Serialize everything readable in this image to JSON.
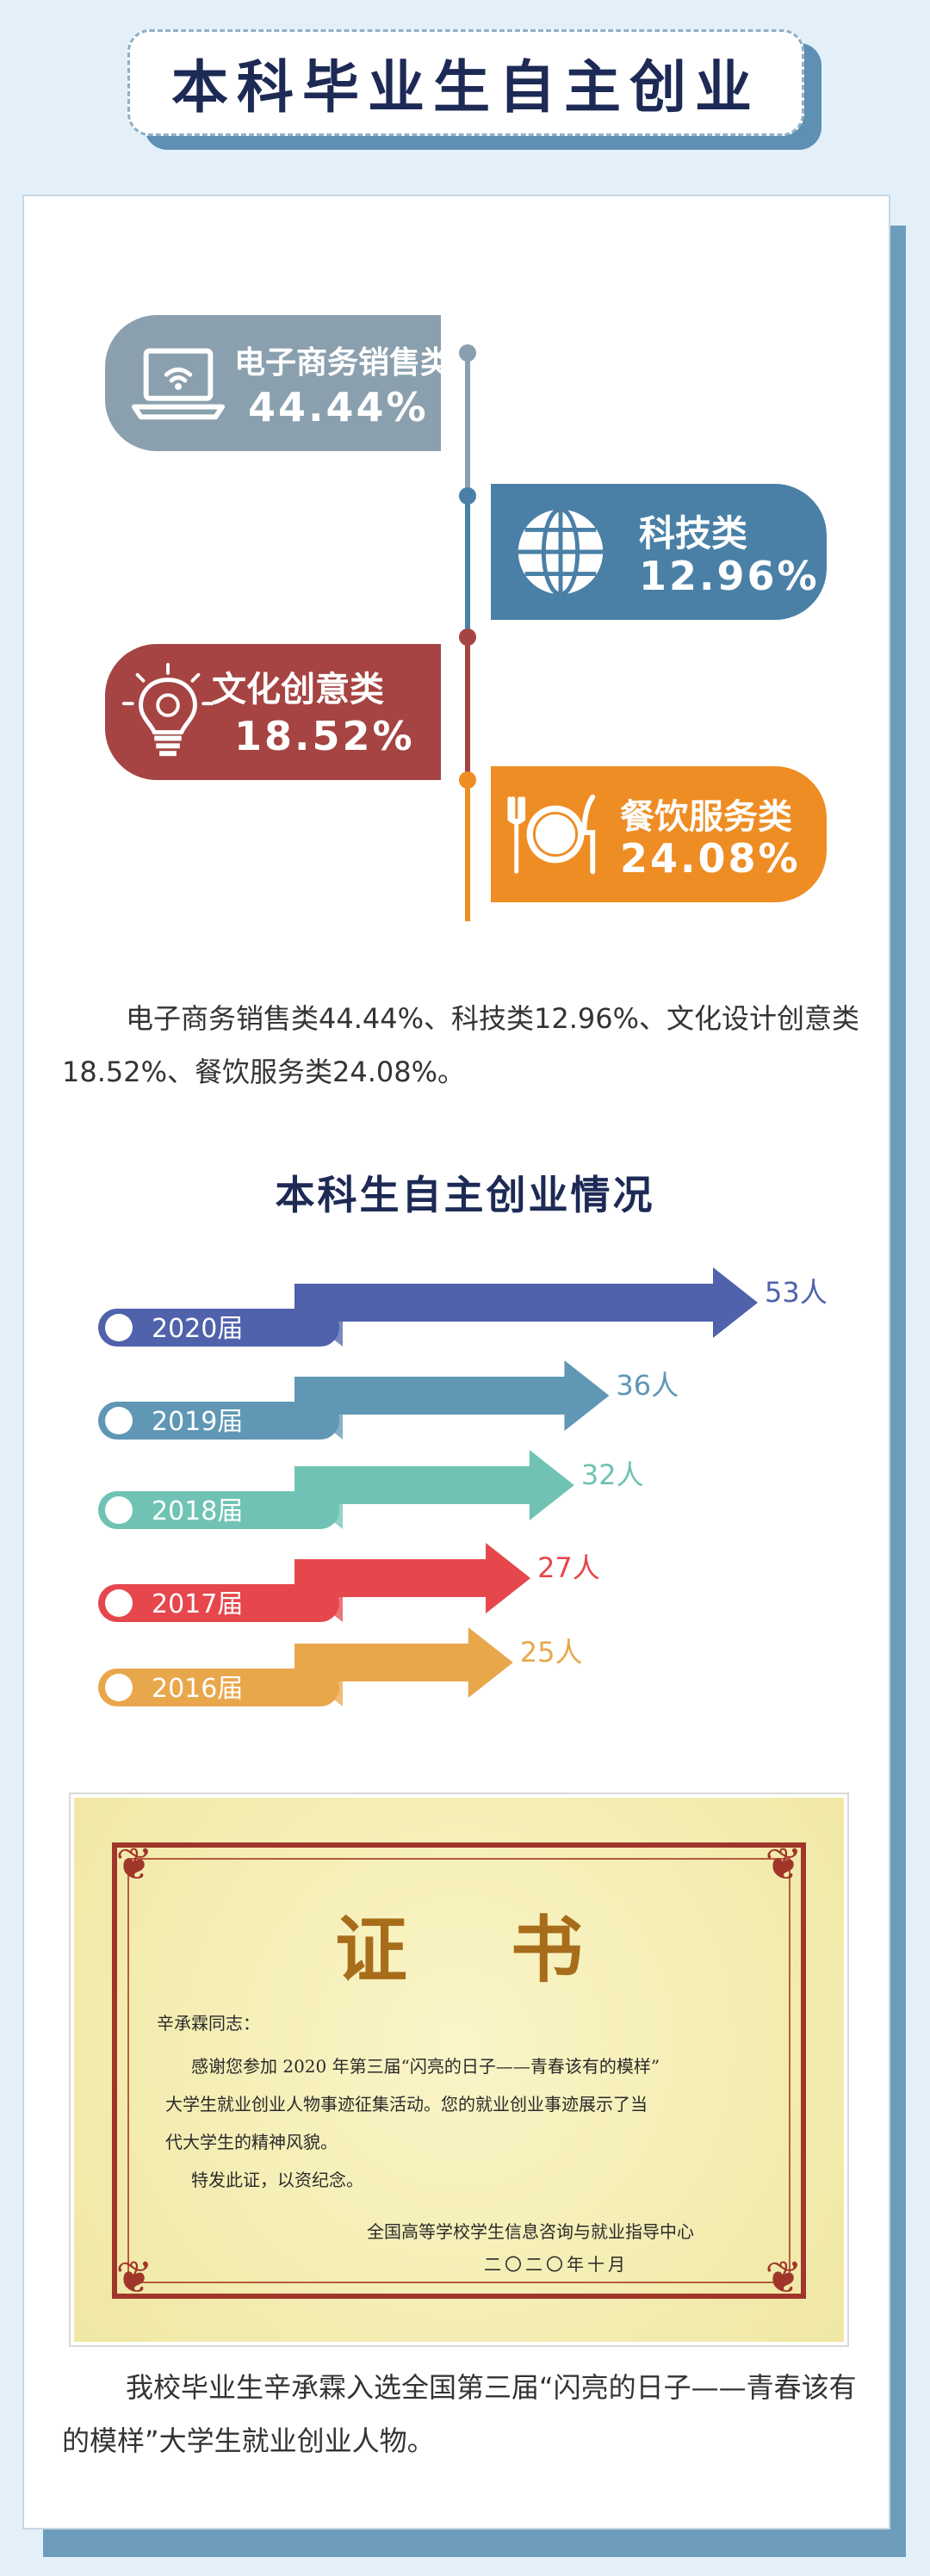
{
  "header": {
    "title": "本科毕业生自主创业"
  },
  "categories": [
    {
      "name": "电子商务销售类",
      "percent": "44.44%",
      "color": "#8ba0ae",
      "icon": "laptop-icon"
    },
    {
      "name": "科技类",
      "percent": "12.96%",
      "color": "#4a80a6",
      "icon": "globe-icon"
    },
    {
      "name": "文化创意类",
      "percent": "18.52%",
      "color": "#a54442",
      "icon": "lightbulb-icon"
    },
    {
      "name": "餐饮服务类",
      "percent": "24.08%",
      "color": "#ee8d24",
      "icon": "dining-icon"
    }
  ],
  "summary_text": "电子商务销售类44.44%、科技类12.96%、文化设计创意类18.52%、餐饮服务类24.08%。",
  "chart_data": {
    "type": "bar",
    "title": "本科生自主创业情况",
    "categories": [
      "2020届",
      "2019届",
      "2018届",
      "2017届",
      "2016届"
    ],
    "values": [
      53,
      36,
      32,
      27,
      25
    ],
    "value_labels": [
      "53人",
      "36人",
      "32人",
      "27人",
      "25人"
    ],
    "colors": [
      "#4f62ab",
      "#5f97b5",
      "#70c3b4",
      "#e5474d",
      "#e9a74c"
    ]
  },
  "certificate": {
    "heading": "证书",
    "recipient": "辛承霖同志：",
    "line1": "感谢您参加 2020 年第三届“闪亮的日子——青春该有的模样”",
    "line2": "大学生就业创业人物事迹征集活动。您的就业创业事迹展示了当",
    "line3": "代大学生的精神风貌。",
    "line4": "特发此证，以资纪念。",
    "issuer": "全国高等学校学生信息咨询与就业指导中心",
    "date": "二〇二〇年十月"
  },
  "footer_text": "我校毕业生辛承霖入选全国第三届“闪亮的日子——青春该有的模样”大学生就业创业人物。"
}
